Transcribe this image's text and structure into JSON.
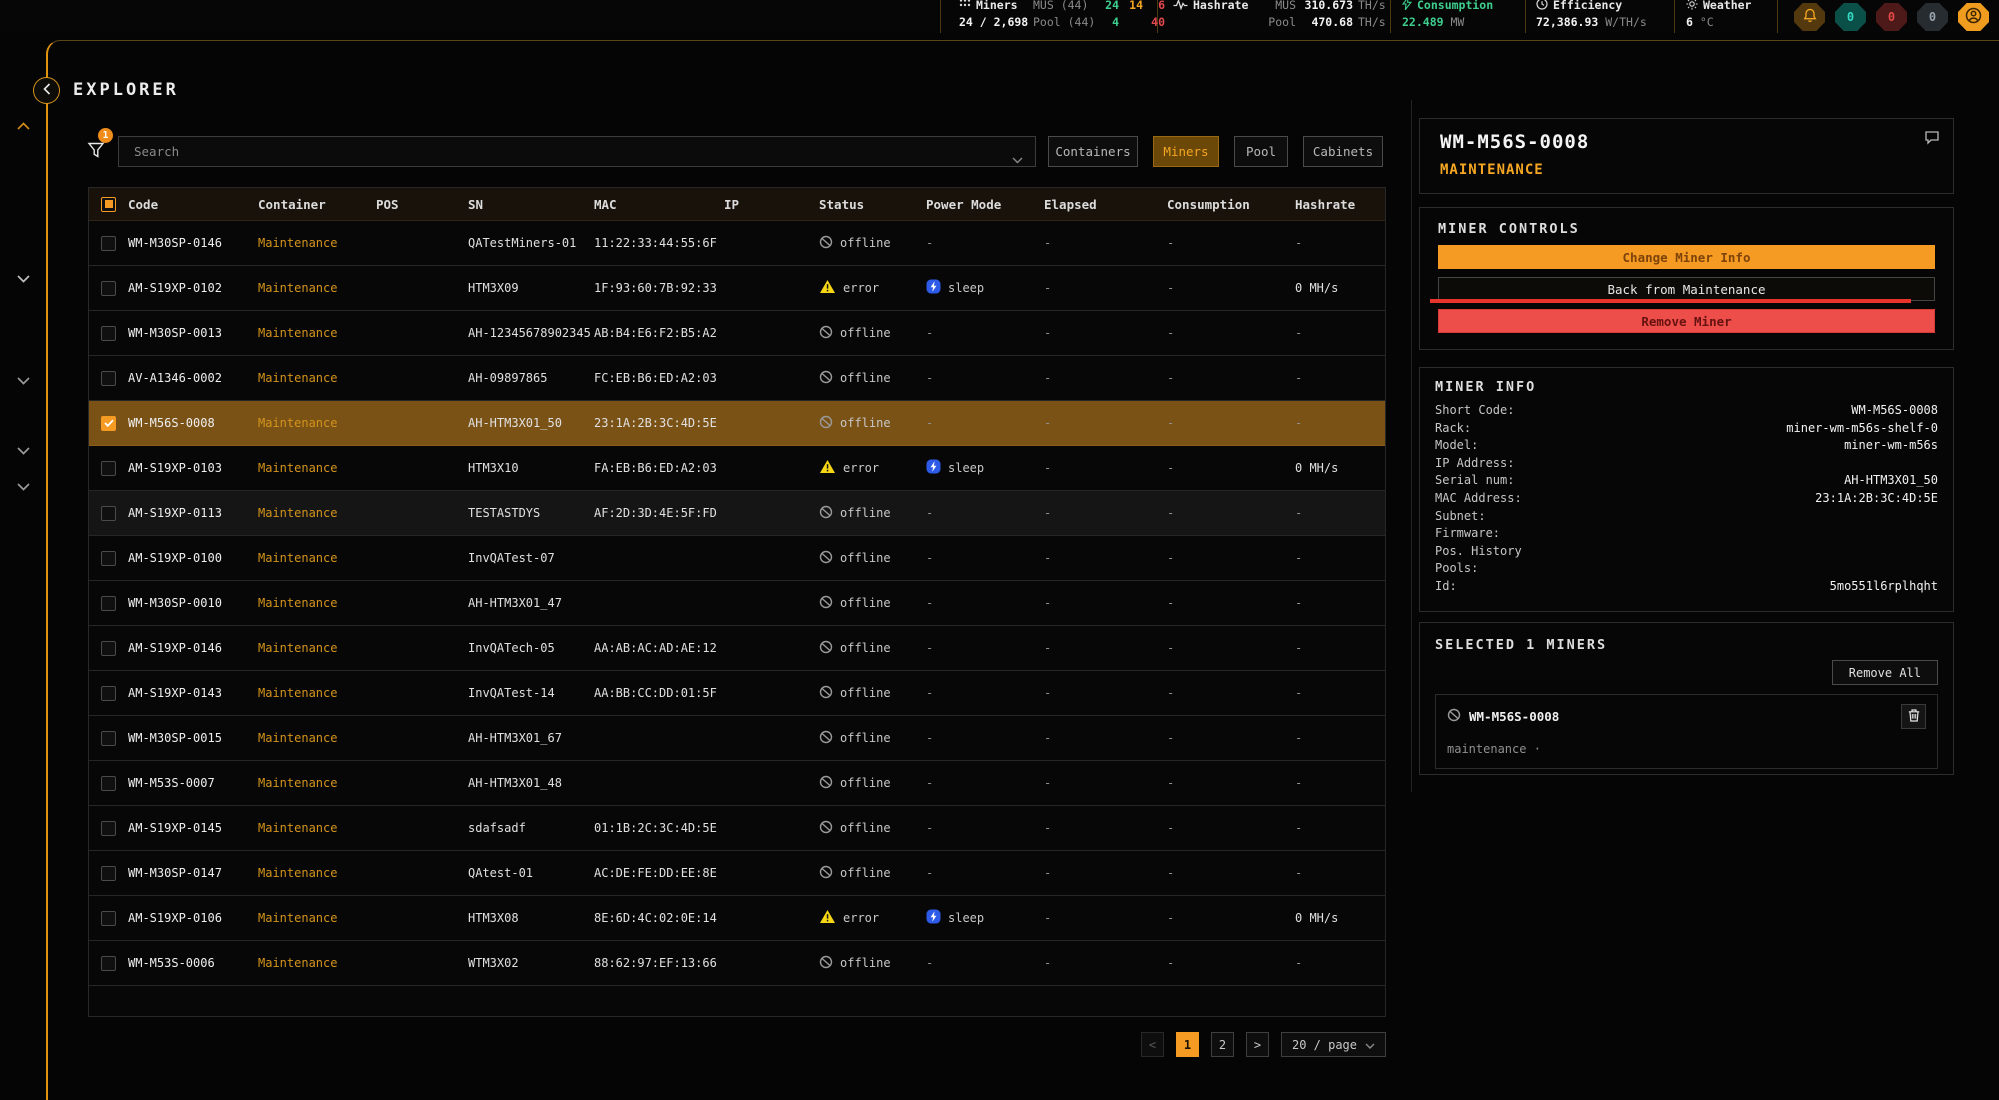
{
  "topbar": {
    "miners": {
      "label": "Miners",
      "sub": "MUS (44)",
      "ok": "24",
      "warn": "14",
      "err": "6",
      "total": "24 / 2,698",
      "pool_sub": "Pool (44)",
      "pool_ok": "4",
      "pool_err": "40"
    },
    "hashrate": {
      "label": "Hashrate",
      "l1_key": "MUS",
      "l1_val": "310.673",
      "l1_unit": "TH/s",
      "l2_key": "Pool",
      "l2_val": "470.68",
      "l2_unit": "TH/s"
    },
    "consumption": {
      "label": "Consumption",
      "value": "22.489",
      "unit": "MW"
    },
    "efficiency": {
      "label": "Efficiency",
      "value": "72,386.93",
      "unit": "W/TH/s"
    },
    "weather": {
      "label": "Weather",
      "value": "6",
      "unit": "°C"
    },
    "badge_teal": "0",
    "badge_red": "0",
    "badge_gray": "0"
  },
  "explorer_title": "EXPLORER",
  "toolbar": {
    "filter_badge": "1",
    "search_placeholder": "Search",
    "tabs": [
      {
        "label": "Containers",
        "active": false
      },
      {
        "label": "Miners",
        "active": true
      },
      {
        "label": "Pool",
        "active": false
      },
      {
        "label": "Cabinets",
        "active": false
      }
    ]
  },
  "table": {
    "columns": [
      "Code",
      "Container",
      "POS",
      "SN",
      "MAC",
      "IP",
      "Status",
      "Power Mode",
      "Elapsed",
      "Consumption",
      "Hashrate"
    ],
    "rows": [
      {
        "code": "WM-M30SP-0146",
        "container": "Maintenance",
        "pos": "",
        "sn": "QATestMiners-01",
        "mac": "11:22:33:44:55:6F",
        "ip": "",
        "status": "offline",
        "power": "",
        "elapsed": "-",
        "consumption": "-",
        "hashrate": "-",
        "selected": false,
        "highlight": false
      },
      {
        "code": "AM-S19XP-0102",
        "container": "Maintenance",
        "pos": "",
        "sn": "HTM3X09",
        "mac": "1F:93:60:7B:92:33",
        "ip": "",
        "status": "error",
        "power": "sleep",
        "elapsed": "-",
        "consumption": "-",
        "hashrate": "0 MH/s",
        "selected": false,
        "highlight": false
      },
      {
        "code": "WM-M30SP-0013",
        "container": "Maintenance",
        "pos": "",
        "sn": "AH-12345678902345",
        "mac": "AB:B4:E6:F2:B5:A2",
        "ip": "",
        "status": "offline",
        "power": "",
        "elapsed": "-",
        "consumption": "-",
        "hashrate": "-",
        "selected": false,
        "highlight": false
      },
      {
        "code": "AV-A1346-0002",
        "container": "Maintenance",
        "pos": "",
        "sn": "AH-09897865",
        "mac": "FC:EB:B6:ED:A2:03",
        "ip": "",
        "status": "offline",
        "power": "",
        "elapsed": "-",
        "consumption": "-",
        "hashrate": "-",
        "selected": false,
        "highlight": false
      },
      {
        "code": "WM-M56S-0008",
        "container": "Maintenance",
        "pos": "",
        "sn": "AH-HTM3X01_50",
        "mac": "23:1A:2B:3C:4D:5E",
        "ip": "",
        "status": "offline",
        "power": "",
        "elapsed": "-",
        "consumption": "-",
        "hashrate": "-",
        "selected": true,
        "highlight": false
      },
      {
        "code": "AM-S19XP-0103",
        "container": "Maintenance",
        "pos": "",
        "sn": "HTM3X10",
        "mac": "FA:EB:B6:ED:A2:03",
        "ip": "",
        "status": "error",
        "power": "sleep",
        "elapsed": "-",
        "consumption": "-",
        "hashrate": "0 MH/s",
        "selected": false,
        "highlight": false
      },
      {
        "code": "AM-S19XP-0113",
        "container": "Maintenance",
        "pos": "",
        "sn": "TESTASTDYS",
        "mac": "AF:2D:3D:4E:5F:FD",
        "ip": "",
        "status": "offline",
        "power": "",
        "elapsed": "-",
        "consumption": "-",
        "hashrate": "-",
        "selected": false,
        "highlight": true
      },
      {
        "code": "AM-S19XP-0100",
        "container": "Maintenance",
        "pos": "",
        "sn": "InvQATest-07",
        "mac": "",
        "ip": "",
        "status": "offline",
        "power": "",
        "elapsed": "-",
        "consumption": "-",
        "hashrate": "-",
        "selected": false,
        "highlight": false
      },
      {
        "code": "WM-M30SP-0010",
        "container": "Maintenance",
        "pos": "",
        "sn": "AH-HTM3X01_47",
        "mac": "",
        "ip": "",
        "status": "offline",
        "power": "",
        "elapsed": "-",
        "consumption": "-",
        "hashrate": "-",
        "selected": false,
        "highlight": false
      },
      {
        "code": "AM-S19XP-0146",
        "container": "Maintenance",
        "pos": "",
        "sn": "InvQATech-05",
        "mac": "AA:AB:AC:AD:AE:12",
        "ip": "",
        "status": "offline",
        "power": "",
        "elapsed": "-",
        "consumption": "-",
        "hashrate": "-",
        "selected": false,
        "highlight": false
      },
      {
        "code": "AM-S19XP-0143",
        "container": "Maintenance",
        "pos": "",
        "sn": "InvQATest-14",
        "mac": "AA:BB:CC:DD:01:5F",
        "ip": "",
        "status": "offline",
        "power": "",
        "elapsed": "-",
        "consumption": "-",
        "hashrate": "-",
        "selected": false,
        "highlight": false
      },
      {
        "code": "WM-M30SP-0015",
        "container": "Maintenance",
        "pos": "",
        "sn": "AH-HTM3X01_67",
        "mac": "",
        "ip": "",
        "status": "offline",
        "power": "",
        "elapsed": "-",
        "consumption": "-",
        "hashrate": "-",
        "selected": false,
        "highlight": false
      },
      {
        "code": "WM-M53S-0007",
        "container": "Maintenance",
        "pos": "",
        "sn": "AH-HTM3X01_48",
        "mac": "",
        "ip": "",
        "status": "offline",
        "power": "",
        "elapsed": "-",
        "consumption": "-",
        "hashrate": "-",
        "selected": false,
        "highlight": false
      },
      {
        "code": "AM-S19XP-0145",
        "container": "Maintenance",
        "pos": "",
        "sn": "sdafsadf",
        "mac": "01:1B:2C:3C:4D:5E",
        "ip": "",
        "status": "offline",
        "power": "",
        "elapsed": "-",
        "consumption": "-",
        "hashrate": "-",
        "selected": false,
        "highlight": false
      },
      {
        "code": "WM-M30SP-0147",
        "container": "Maintenance",
        "pos": "",
        "sn": "QAtest-01",
        "mac": "AC:DE:FE:DD:EE:8E",
        "ip": "",
        "status": "offline",
        "power": "",
        "elapsed": "-",
        "consumption": "-",
        "hashrate": "-",
        "selected": false,
        "highlight": false
      },
      {
        "code": "AM-S19XP-0106",
        "container": "Maintenance",
        "pos": "",
        "sn": "HTM3X08",
        "mac": "8E:6D:4C:02:0E:14",
        "ip": "",
        "status": "error",
        "power": "sleep",
        "elapsed": "-",
        "consumption": "-",
        "hashrate": "0 MH/s",
        "selected": false,
        "highlight": false
      },
      {
        "code": "WM-M53S-0006",
        "container": "Maintenance",
        "pos": "",
        "sn": "WTM3X02",
        "mac": "88:62:97:EF:13:66",
        "ip": "",
        "status": "offline",
        "power": "",
        "elapsed": "-",
        "consumption": "-",
        "hashrate": "-",
        "selected": false,
        "highlight": false
      }
    ]
  },
  "pagination": {
    "prev": "<",
    "next": ">",
    "pages": [
      "1",
      "2"
    ],
    "active_page": "1",
    "size": "20 / page"
  },
  "detail": {
    "title": "WM-M56S-0008",
    "state": "MAINTENANCE",
    "controls_heading": "MINER CONTROLS",
    "btn_change": "Change Miner Info",
    "btn_back": "Back from Maintenance",
    "btn_remove": "Remove Miner",
    "info_heading": "MINER INFO",
    "info_fields": [
      {
        "label": "Short Code:",
        "value": "WM-M56S-0008"
      },
      {
        "label": "Rack:",
        "value": "miner-wm-m56s-shelf-0"
      },
      {
        "label": "Model:",
        "value": "miner-wm-m56s"
      },
      {
        "label": "IP Address:",
        "value": ""
      },
      {
        "label": "Serial num:",
        "value": "AH-HTM3X01_50"
      },
      {
        "label": "MAC Address:",
        "value": "23:1A:2B:3C:4D:5E"
      },
      {
        "label": "Subnet:",
        "value": ""
      },
      {
        "label": "Firmware:",
        "value": ""
      },
      {
        "label": "Pos. History",
        "value": ""
      },
      {
        "label": "Pools:",
        "value": ""
      },
      {
        "label": "Id:",
        "value": "5mo551l6rplhqht"
      }
    ],
    "selected_heading": "SELECTED 1 MINERS",
    "remove_all": "Remove All",
    "selected_item": {
      "code": "WM-M56S-0008",
      "status": "maintenance ·"
    }
  },
  "colors": {
    "accent": "#f59a23",
    "green": "#3ecf8e",
    "red": "#e5484d",
    "warn_yellow": "#f5d514",
    "sleep_blue": "#2d5be8",
    "selected_row": "#7a5216"
  }
}
